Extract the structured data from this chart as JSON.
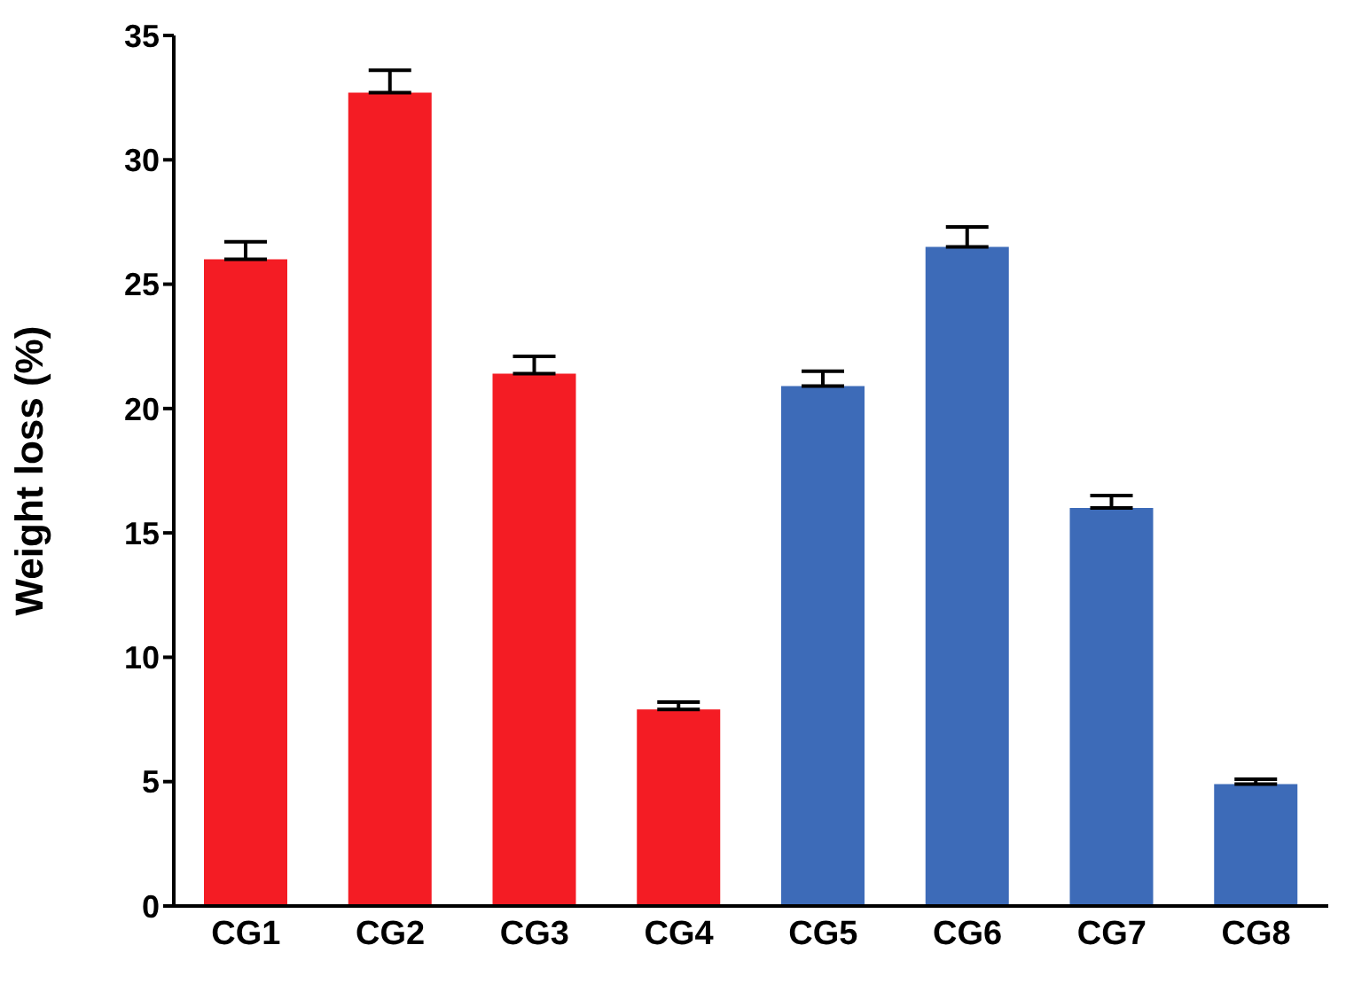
{
  "chart_data": {
    "type": "bar",
    "ylabel": "Weight loss (%)",
    "categories": [
      "CG1",
      "CG2",
      "CG3",
      "CG4",
      "CG5",
      "CG6",
      "CG7",
      "CG8"
    ],
    "values": [
      26,
      32.7,
      21.4,
      7.9,
      20.9,
      26.5,
      16,
      4.9
    ],
    "errors": [
      [
        26,
        26.7
      ],
      [
        32.7,
        33.6
      ],
      [
        21.4,
        22.1
      ],
      [
        7.9,
        8.2
      ],
      [
        20.9,
        21.5
      ],
      [
        26.5,
        27.3
      ],
      [
        16,
        16.5
      ],
      [
        4.9,
        5.1
      ]
    ],
    "colors": [
      "#f41c24",
      "#f41c24",
      "#f41c24",
      "#f41c24",
      "#3d6bb8",
      "#3d6bb8",
      "#3d6bb8",
      "#3d6bb8"
    ],
    "ylim": [
      0,
      35
    ],
    "yticks": [
      0,
      5,
      10,
      15,
      20,
      25,
      30,
      35
    ],
    "grid": false
  }
}
